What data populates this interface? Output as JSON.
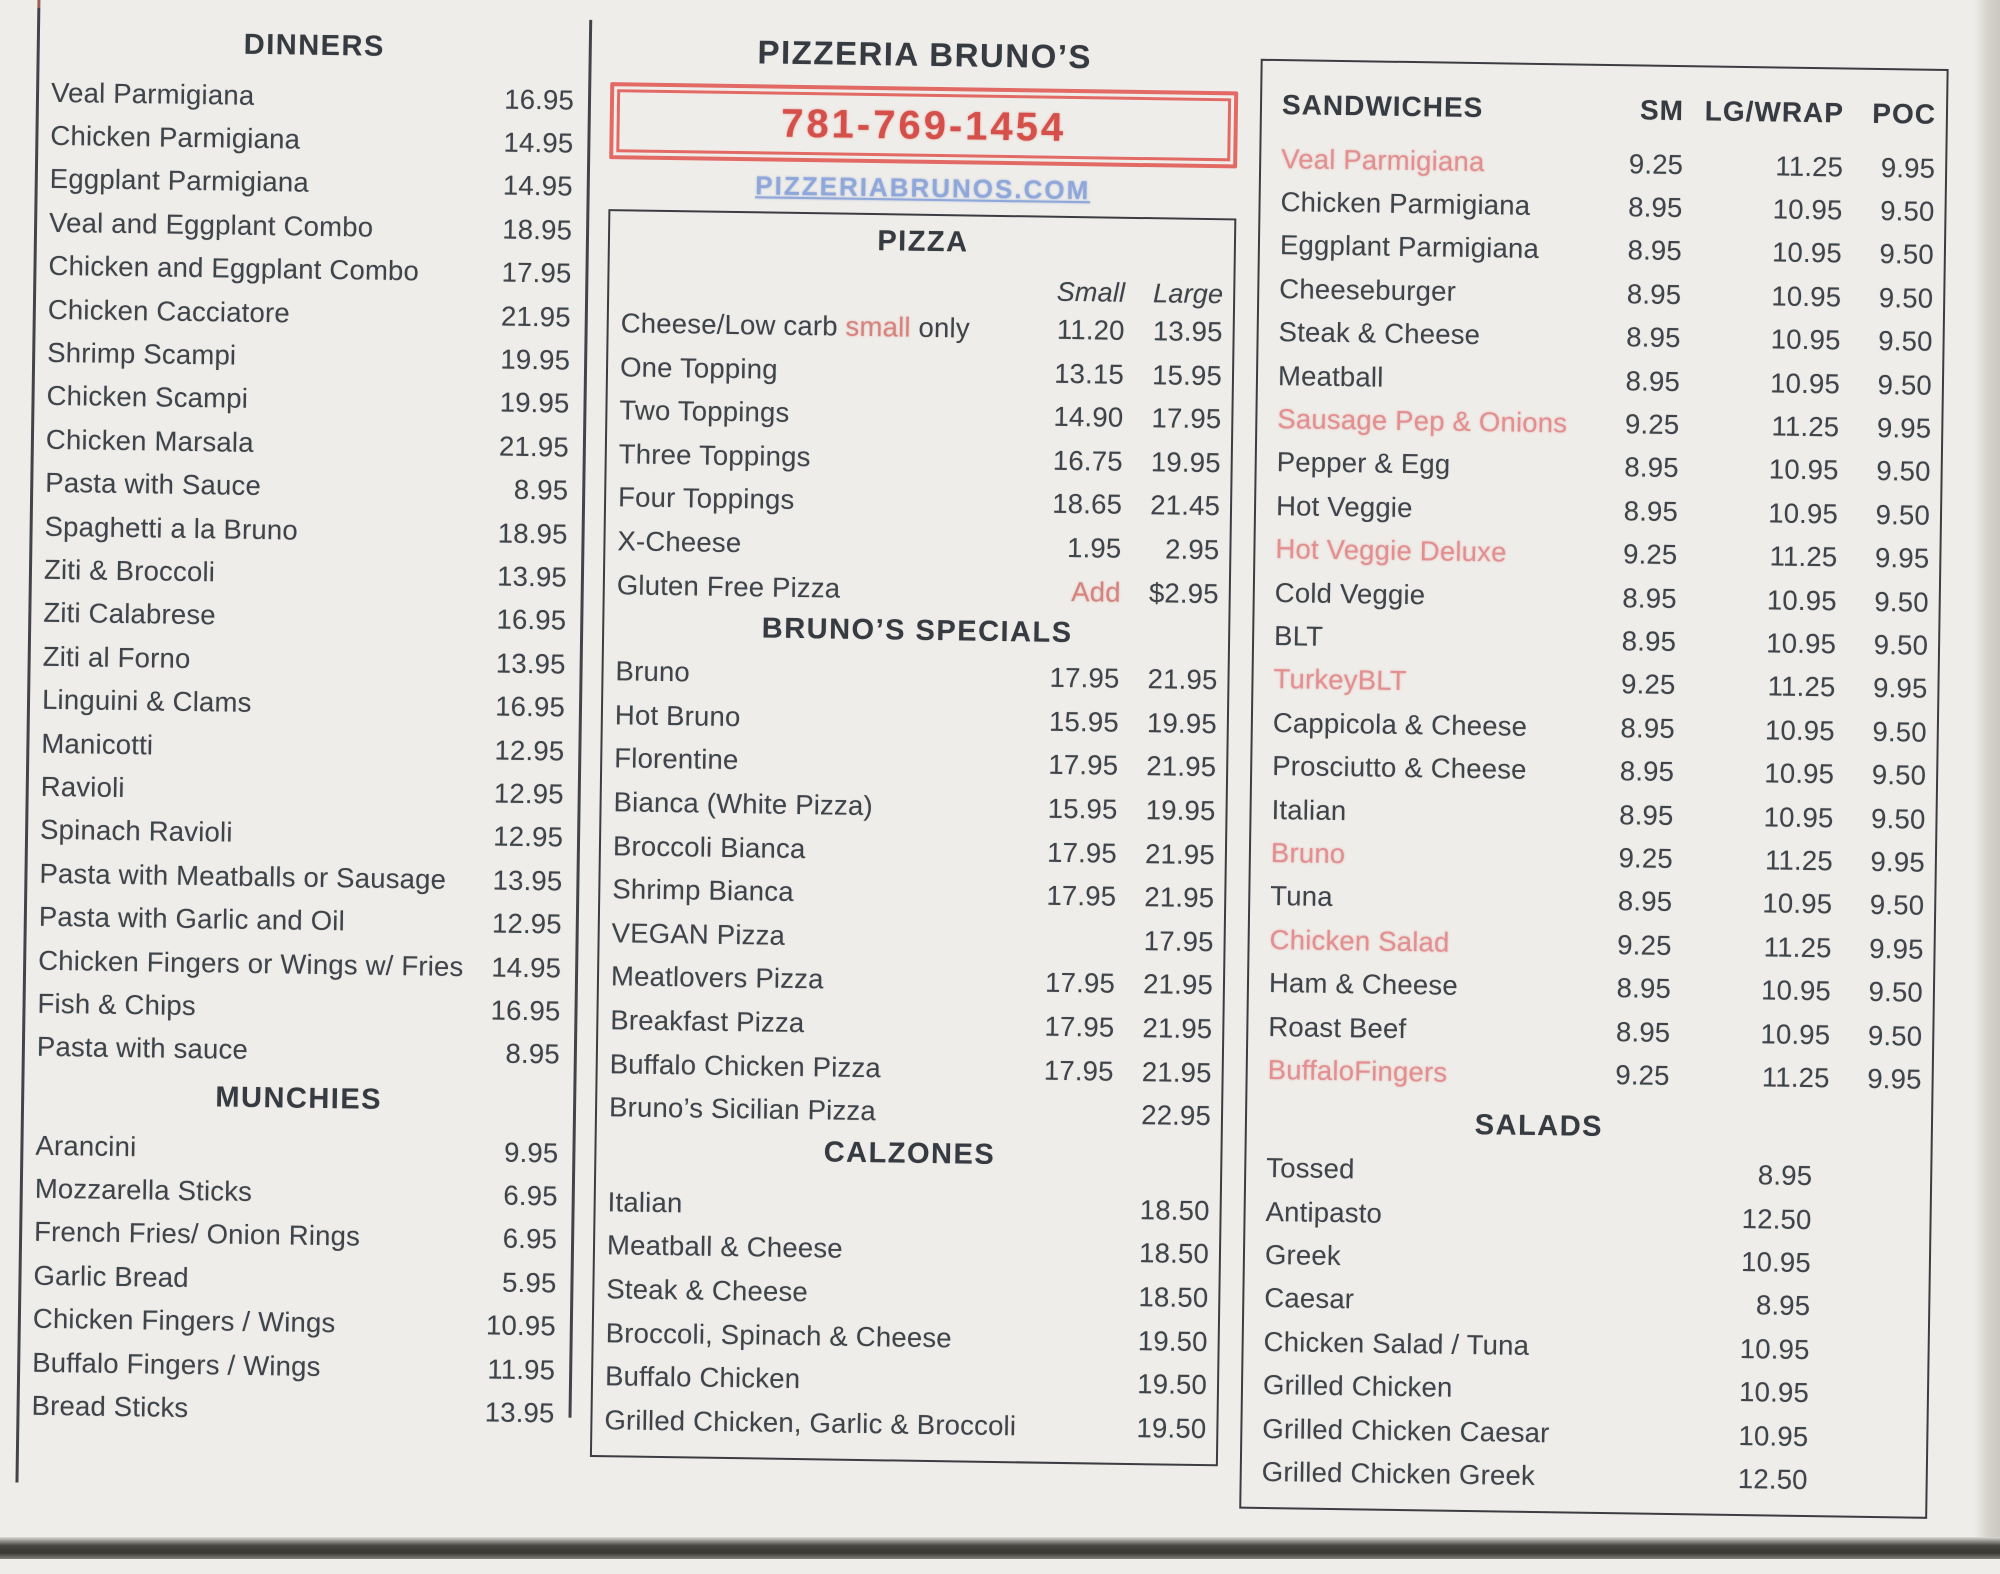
{
  "colors": {
    "accent_red": "#d5504a",
    "faded_red": "#e28f90",
    "link_blue": "#8fa8d9",
    "ink": "#3f444b"
  },
  "left": {
    "dinners": {
      "title": "DINNERS",
      "items": [
        {
          "name": "Veal Parmigiana",
          "price": "16.95"
        },
        {
          "name": "Chicken Parmigiana",
          "price": "14.95"
        },
        {
          "name": "Eggplant Parmigiana",
          "price": "14.95"
        },
        {
          "name": "Veal and Eggplant Combo",
          "price": "18.95"
        },
        {
          "name": "Chicken and Eggplant Combo",
          "price": "17.95"
        },
        {
          "name": "Chicken Cacciatore",
          "price": "21.95"
        },
        {
          "name": "Shrimp Scampi",
          "price": "19.95"
        },
        {
          "name": "Chicken Scampi",
          "price": "19.95"
        },
        {
          "name": "Chicken Marsala",
          "price": "21.95"
        },
        {
          "name": "Pasta with Sauce",
          "price": "8.95"
        },
        {
          "name": "Spaghetti a la Bruno",
          "price": "18.95"
        },
        {
          "name": "Ziti & Broccoli",
          "price": "13.95"
        },
        {
          "name": "Ziti Calabrese",
          "price": "16.95"
        },
        {
          "name": "Ziti al Forno",
          "price": "13.95"
        },
        {
          "name": "Linguini & Clams",
          "price": "16.95"
        },
        {
          "name": "Manicotti",
          "price": "12.95"
        },
        {
          "name": "Ravioli",
          "price": "12.95"
        },
        {
          "name": "Spinach Ravioli",
          "price": "12.95"
        },
        {
          "name": "Pasta with Meatballs or Sausage",
          "price": "13.95"
        },
        {
          "name": "Pasta with Garlic and Oil",
          "price": "12.95"
        },
        {
          "name": "Chicken Fingers or Wings w/ Fries",
          "price": "14.95"
        },
        {
          "name": "Fish & Chips",
          "price": "16.95"
        },
        {
          "name": "Pasta with sauce",
          "price": "8.95"
        }
      ]
    },
    "munchies": {
      "title": "MUNCHIES",
      "items": [
        {
          "name": "Arancini",
          "price": "9.95"
        },
        {
          "name": "Mozzarella Sticks",
          "price": "6.95"
        },
        {
          "name": "French Fries/ Onion Rings",
          "price": "6.95"
        },
        {
          "name": "Garlic Bread",
          "price": "5.95"
        },
        {
          "name": "Chicken Fingers / Wings",
          "price": "10.95"
        },
        {
          "name": "Buffalo Fingers / Wings",
          "price": "11.95"
        },
        {
          "name": "Bread Sticks",
          "price": "13.95"
        }
      ]
    }
  },
  "center": {
    "title": "PIZZERIA BRUNO’S",
    "phone": "781-769-1454",
    "website": "PIZZERIABRUNOS.COM",
    "pizza": {
      "title": "PIZZA",
      "col_small": "Small",
      "col_large": "Large",
      "items": [
        {
          "name_pre": "Cheese/Low carb ",
          "name_red": "small",
          "name_post": " only",
          "small": "11.20",
          "large": "13.95"
        },
        {
          "name_pre": "One Topping",
          "name_red": "",
          "name_post": "",
          "small": "13.15",
          "large": "15.95"
        },
        {
          "name_pre": "Two Toppings",
          "name_red": "",
          "name_post": "",
          "small": "14.90",
          "large": "17.95"
        },
        {
          "name_pre": "Three Toppings",
          "name_red": "",
          "name_post": "",
          "small": "16.75",
          "large": "19.95"
        },
        {
          "name_pre": "Four Toppings",
          "name_red": "",
          "name_post": "",
          "small": "18.65",
          "large": "21.45"
        },
        {
          "name_pre": "X-Cheese",
          "name_red": "",
          "name_post": "",
          "small": "1.95",
          "large": "2.95"
        },
        {
          "name_pre": "Gluten Free  Pizza",
          "name_red": "",
          "name_post": "",
          "small": "Add",
          "small_red": true,
          "large": "$2.95"
        }
      ]
    },
    "specials": {
      "title": "BRUNO’S SPECIALS",
      "items": [
        {
          "name_pre": "Bruno",
          "name_red": "",
          "name_post": "",
          "small": "17.95",
          "large": "21.95"
        },
        {
          "name_pre": "Hot Bruno",
          "name_red": "",
          "name_post": "",
          "small": "15.95",
          "large": "19.95"
        },
        {
          "name_pre": "Florentine",
          "name_red": "",
          "name_post": "",
          "small": "17.95",
          "large": "21.95"
        },
        {
          "name_pre": "Bianca (White Pizza)",
          "name_red": "",
          "name_post": "",
          "small": "15.95",
          "large": "19.95"
        },
        {
          "name_pre": "Broccoli Bianca",
          "name_red": "",
          "name_post": "",
          "small": "17.95",
          "large": "21.95"
        },
        {
          "name_pre": "Shrimp Bianca",
          "name_red": "",
          "name_post": "",
          "small": "17.95",
          "large": "21.95"
        },
        {
          "name_pre": "VEGAN Pizza",
          "name_red": "",
          "name_post": "",
          "small": "",
          "large": "17.95"
        },
        {
          "name_pre": "Meatlovers Pizza",
          "name_red": "",
          "name_post": "",
          "small": "17.95",
          "large": "21.95"
        },
        {
          "name_pre": "Breakfast Pizza",
          "name_red": "",
          "name_post": "",
          "small": "17.95",
          "large": "21.95"
        },
        {
          "name_pre": "Buffalo Chicken Pizza",
          "name_red": "",
          "name_post": "",
          "small": "17.95",
          "large": "21.95"
        },
        {
          "name_pre": "Bruno’s Sicilian Pizza",
          "name_red": "",
          "name_post": "",
          "small": "",
          "large": "22.95"
        }
      ]
    },
    "calzones": {
      "title": "CALZONES",
      "items": [
        {
          "name": "Italian",
          "price": "18.50"
        },
        {
          "name": "Meatball & Cheese",
          "price": "18.50"
        },
        {
          "name": "Steak & Cheese",
          "price": "18.50"
        },
        {
          "name": "Broccoli, Spinach & Cheese",
          "price": "19.50"
        },
        {
          "name": "Buffalo Chicken",
          "price": "19.50"
        },
        {
          "name": "Grilled Chicken, Garlic & Broccoli",
          "price": "19.50"
        }
      ]
    }
  },
  "right": {
    "sandwiches": {
      "title": "SANDWICHES",
      "col_sm": "SM",
      "col_lg": "LG/WRAP",
      "col_poc": "POC",
      "items": [
        {
          "name": "Veal Parmigiana",
          "sm": "9.25",
          "lg": "11.25",
          "poc": "9.95",
          "red": true
        },
        {
          "name": "Chicken Parmigiana",
          "sm": "8.95",
          "lg": "10.95",
          "poc": "9.50"
        },
        {
          "name": "Eggplant Parmigiana",
          "sm": "8.95",
          "lg": "10.95",
          "poc": "9.50"
        },
        {
          "name": "Cheeseburger",
          "sm": "8.95",
          "lg": "10.95",
          "poc": "9.50"
        },
        {
          "name": "Steak & Cheese",
          "sm": "8.95",
          "lg": "10.95",
          "poc": "9.50"
        },
        {
          "name": "Meatball",
          "sm": "8.95",
          "lg": "10.95",
          "poc": "9.50"
        },
        {
          "name": "Sausage Pep & Onions",
          "sm": "9.25",
          "lg": "11.25",
          "poc": "9.95",
          "red": true
        },
        {
          "name": "Pepper & Egg",
          "sm": "8.95",
          "lg": "10.95",
          "poc": "9.50"
        },
        {
          "name": "Hot Veggie",
          "sm": "8.95",
          "lg": "10.95",
          "poc": "9.50"
        },
        {
          "name": "Hot Veggie Deluxe",
          "sm": "9.25",
          "lg": "11.25",
          "poc": "9.95",
          "red": true
        },
        {
          "name": "Cold Veggie",
          "sm": "8.95",
          "lg": "10.95",
          "poc": "9.50"
        },
        {
          "name": "BLT",
          "sm": "8.95",
          "lg": "10.95",
          "poc": "9.50"
        },
        {
          "name": "TurkeyBLT",
          "sm": "9.25",
          "lg": "11.25",
          "poc": "9.95",
          "red": true
        },
        {
          "name": "Cappicola & Cheese",
          "sm": "8.95",
          "lg": "10.95",
          "poc": "9.50"
        },
        {
          "name": "Prosciutto & Cheese",
          "sm": "8.95",
          "lg": "10.95",
          "poc": "9.50"
        },
        {
          "name": "Italian",
          "sm": "8.95",
          "lg": "10.95",
          "poc": "9.50"
        },
        {
          "name": "Bruno",
          "sm": "9.25",
          "lg": "11.25",
          "poc": "9.95",
          "red": true
        },
        {
          "name": "Tuna",
          "sm": "8.95",
          "lg": "10.95",
          "poc": "9.50"
        },
        {
          "name": "Chicken Salad",
          "sm": "9.25",
          "lg": "11.25",
          "poc": "9.95",
          "red": true
        },
        {
          "name": "Ham & Cheese",
          "sm": "8.95",
          "lg": "10.95",
          "poc": "9.50"
        },
        {
          "name": "Roast Beef",
          "sm": "8.95",
          "lg": "10.95",
          "poc": "9.50"
        },
        {
          "name": "BuffaloFingers",
          "sm": "9.25",
          "lg": "11.25",
          "poc": "9.95",
          "red": true
        }
      ]
    },
    "salads": {
      "title": "SALADS",
      "items": [
        {
          "name": "Tossed",
          "price": "8.95"
        },
        {
          "name": "Antipasto",
          "price": "12.50"
        },
        {
          "name": "Greek",
          "price": "10.95"
        },
        {
          "name": "Caesar",
          "price": "8.95"
        },
        {
          "name": "Chicken Salad / Tuna",
          "price": "10.95"
        },
        {
          "name": "Grilled Chicken",
          "price": "10.95"
        },
        {
          "name": "Grilled Chicken Caesar",
          "price": "10.95"
        },
        {
          "name": "Grilled Chicken Greek",
          "price": "12.50"
        }
      ]
    }
  }
}
